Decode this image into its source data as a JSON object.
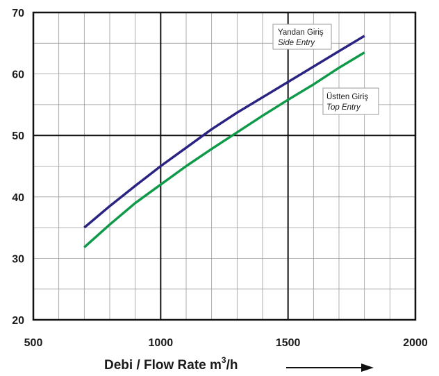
{
  "chart_data": {
    "type": "line",
    "title": "",
    "xlabel": "Debi / Flow Rate  m",
    "xlabel_sup": "3",
    "xlabel_suffix": "/h",
    "ylabel": "",
    "xlim": [
      500,
      2000
    ],
    "ylim": [
      20,
      70
    ],
    "x_ticks": [
      500,
      1000,
      1500,
      2000
    ],
    "y_ticks": [
      20,
      30,
      40,
      50,
      60,
      70
    ],
    "x_minor_step": 100,
    "y_minor_step": 5,
    "grid": true,
    "series": [
      {
        "name_line1": "Yandan Giriş",
        "name_line2": "Side Entry",
        "color": "#2a2382",
        "x": [
          700,
          800,
          900,
          1000,
          1100,
          1200,
          1300,
          1400,
          1500,
          1600,
          1700,
          1800
        ],
        "y": [
          35.0,
          38.5,
          41.8,
          45.0,
          48.0,
          51.0,
          53.7,
          56.2,
          58.7,
          61.2,
          63.7,
          66.2
        ]
      },
      {
        "name_line1": "Üstten Giriş",
        "name_line2": "Top Entry",
        "color": "#0f9a4a",
        "x": [
          700,
          800,
          900,
          1000,
          1100,
          1200,
          1300,
          1400,
          1500,
          1600,
          1700,
          1800
        ],
        "y": [
          31.8,
          35.5,
          39.0,
          42.0,
          45.0,
          47.8,
          50.5,
          53.2,
          55.8,
          58.3,
          61.0,
          63.5
        ]
      }
    ]
  }
}
